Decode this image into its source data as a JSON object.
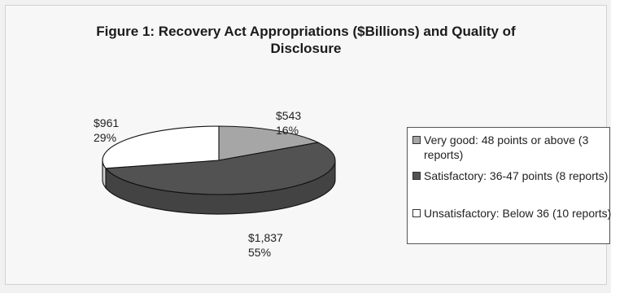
{
  "chart_data": {
    "type": "pie",
    "title": "Figure 1: Recovery Act Appropriations ($Billions) and Quality of Disclosure",
    "title_lines": [
      "Figure 1: Recovery Act Appropriations ($Billions) and Quality of",
      "Disclosure"
    ],
    "style": "3d",
    "legend_position": "right",
    "slices": [
      {
        "legend": "Very good: 48 points or above (3 reports)",
        "value": 543,
        "value_label": "$543",
        "percent_label": "16%",
        "color": "#a6a6a6"
      },
      {
        "legend": "Satisfactory: 36-47 points (8 reports)",
        "value": 1837,
        "value_label": "$1,837",
        "percent_label": "55%",
        "color": "#525252"
      },
      {
        "legend": "Unsatisfactory: Below 36 (10 reports)",
        "value": 961,
        "value_label": "$961",
        "percent_label": "29%",
        "color": "#ffffff"
      }
    ]
  }
}
